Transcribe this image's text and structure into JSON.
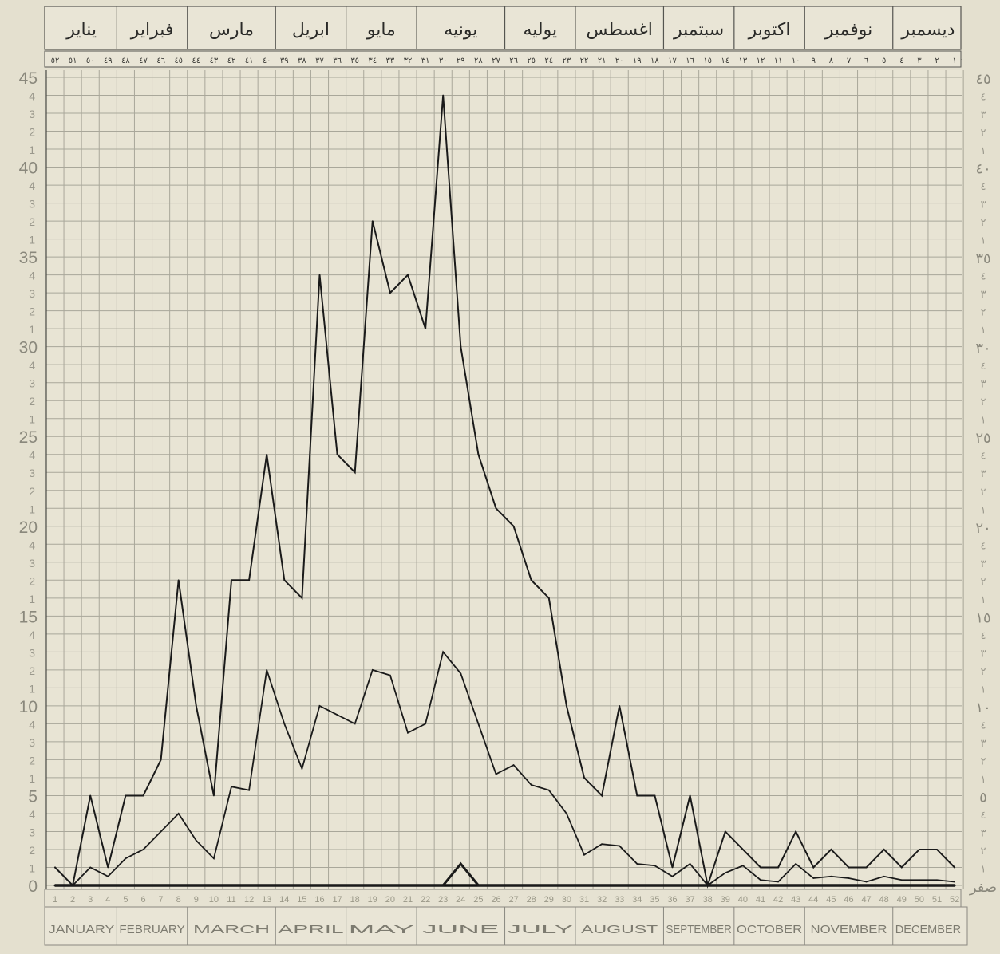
{
  "chart_data": {
    "type": "line",
    "months_en": [
      "JANUARY",
      "FEBRUARY",
      "MARCH",
      "APRIL",
      "MAY",
      "JUNE",
      "JULY",
      "AUGUST",
      "SEPTEMBER",
      "OCTOBER",
      "NOVEMBER",
      "DECEMBER"
    ],
    "months_ar": [
      "ديسمبر",
      "نوفمبر",
      "اكتوبر",
      "سبتمبر",
      "اغسطس",
      "يوليه",
      "يونيه",
      "مايو",
      "ابريل",
      "مارس",
      "فبراير",
      "يناير"
    ],
    "weeks_top_ar": [
      "١",
      "٢",
      "٣",
      "٤",
      "٥",
      "٦",
      "٧",
      "٨",
      "٩",
      "١٠",
      "١١",
      "١٢",
      "١٣",
      "١٤",
      "١٥",
      "١٦",
      "١٧",
      "١٨",
      "١٩",
      "٢٠",
      "٢١",
      "٢٢",
      "٢٣",
      "٢٤",
      "٢٥",
      "٢٦",
      "٢٧",
      "٢٨",
      "٢٩",
      "٣٠",
      "٣١",
      "٣٢",
      "٣٣",
      "٣٤",
      "٣٥",
      "٣٦",
      "٣٧",
      "٣٨",
      "٣٩",
      "٤٠",
      "٤١",
      "٤٢",
      "٤٣",
      "٤٤",
      "٤٥",
      "٤٦",
      "٤٧",
      "٤٨",
      "٤٩",
      "٥٠",
      "٥١",
      "٥٢"
    ],
    "x": [
      1,
      2,
      3,
      4,
      5,
      6,
      7,
      8,
      9,
      10,
      11,
      12,
      13,
      14,
      15,
      16,
      17,
      18,
      19,
      20,
      21,
      22,
      23,
      24,
      25,
      26,
      27,
      28,
      29,
      30,
      31,
      32,
      33,
      34,
      35,
      36,
      37,
      38,
      39,
      40,
      41,
      42,
      43,
      44,
      45,
      46,
      47,
      48,
      49,
      50,
      51,
      52
    ],
    "ylim": [
      0,
      45
    ],
    "y_major_ticks": [
      "0",
      "5",
      "10",
      "15",
      "20",
      "25",
      "30",
      "35",
      "40",
      "45"
    ],
    "y_minor_digits": [
      "1",
      "2",
      "3",
      "4",
      "6",
      "7",
      "8",
      "9"
    ],
    "y_right_major": [
      "صفر",
      "٥",
      "١٠",
      "١٥",
      "٢٠",
      "٢٥",
      "٣٠",
      "٣٥",
      "٤٠",
      "٤٥"
    ],
    "y_right_minor": [
      "١",
      "٢",
      "٣",
      "٤",
      "٦",
      "٧",
      "٨",
      "٩"
    ],
    "grid": true,
    "series": [
      {
        "color": "#1a1a1a",
        "width": 2.0,
        "values": [
          1,
          0,
          5,
          1,
          5,
          5,
          7,
          17,
          10,
          5,
          17,
          17,
          24,
          17,
          16,
          34,
          24,
          23,
          37,
          33,
          34,
          31,
          44,
          30,
          24,
          21,
          20,
          17,
          16,
          10,
          6,
          5,
          10,
          5,
          5,
          1,
          5,
          0,
          3,
          2,
          1,
          1,
          3,
          1,
          2,
          1,
          1,
          2,
          1,
          2,
          2,
          1
        ]
      },
      {
        "color": "#1a1a1a",
        "width": 1.8,
        "values": [
          0,
          0,
          1,
          0.5,
          1.5,
          2,
          3,
          4,
          2.5,
          1.5,
          5.5,
          5.3,
          12,
          9,
          6.5,
          10,
          9.5,
          9,
          12,
          11.7,
          8.5,
          9,
          13,
          11.8,
          9,
          6.2,
          6.7,
          5.6,
          5.3,
          4,
          1.7,
          2.3,
          2.2,
          1.2,
          1.1,
          0.5,
          1.2,
          0,
          0.7,
          1.1,
          0.3,
          0.2,
          1.2,
          0.4,
          0.5,
          0.4,
          0.2,
          0.5,
          0.3,
          0.3,
          0.3,
          0.2
        ]
      },
      {
        "color": "#1a1a1a",
        "width": 3.0,
        "values": [
          0,
          0,
          0,
          0,
          0,
          0,
          0,
          0,
          0,
          0,
          0,
          0,
          0,
          0,
          0,
          0,
          0,
          0,
          0,
          0,
          0,
          0,
          0,
          1.2,
          0,
          0,
          0,
          0,
          0,
          0,
          0,
          0,
          0,
          0,
          0,
          0,
          0,
          0,
          0,
          0,
          0,
          0,
          0,
          0,
          0,
          0,
          0,
          0,
          0,
          0,
          0,
          0
        ]
      }
    ]
  }
}
